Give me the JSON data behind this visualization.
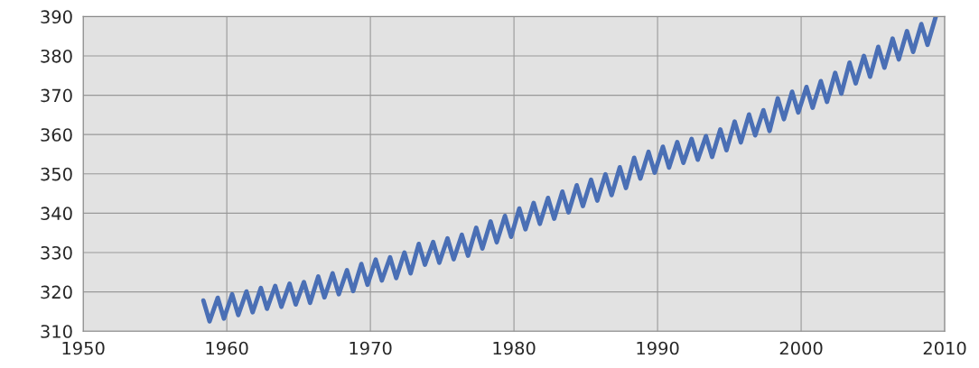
{
  "chart_data": {
    "type": "line",
    "x": [
      1958.37,
      1958.8,
      1959.37,
      1959.8,
      1960.37,
      1960.8,
      1961.37,
      1961.8,
      1962.37,
      1962.8,
      1963.37,
      1963.8,
      1964.37,
      1964.8,
      1965.37,
      1965.8,
      1966.37,
      1966.8,
      1967.37,
      1967.8,
      1968.37,
      1968.8,
      1969.37,
      1969.8,
      1970.37,
      1970.8,
      1971.37,
      1971.8,
      1972.37,
      1972.8,
      1973.37,
      1973.8,
      1974.37,
      1974.8,
      1975.37,
      1975.8,
      1976.37,
      1976.8,
      1977.37,
      1977.8,
      1978.37,
      1978.8,
      1979.37,
      1979.8,
      1980.37,
      1980.8,
      1981.37,
      1981.8,
      1982.37,
      1982.8,
      1983.37,
      1983.8,
      1984.37,
      1984.8,
      1985.37,
      1985.8,
      1986.37,
      1986.8,
      1987.37,
      1987.8,
      1988.37,
      1988.8,
      1989.37,
      1989.8,
      1990.37,
      1990.8,
      1991.37,
      1991.8,
      1992.37,
      1992.8,
      1993.37,
      1993.8,
      1994.37,
      1994.8,
      1995.37,
      1995.8,
      1996.37,
      1996.8,
      1997.37,
      1997.8,
      1998.37,
      1998.8,
      1999.37,
      1999.8,
      2000.37,
      2000.8,
      2001.37,
      2001.8,
      2002.37,
      2002.8,
      2003.37,
      2003.8,
      2004.37,
      2004.8,
      2005.37,
      2005.8,
      2006.37,
      2006.8,
      2007.37,
      2007.8,
      2008.37,
      2008.8,
      2009.37
    ],
    "series": [
      {
        "color": "#4a6fb5",
        "values": [
          317.8,
          312.5,
          318.5,
          313.2,
          319.4,
          314.1,
          320.1,
          314.8,
          321.0,
          315.7,
          321.5,
          316.2,
          322.1,
          316.8,
          322.5,
          317.2,
          323.9,
          318.6,
          324.7,
          319.4,
          325.5,
          320.2,
          327.1,
          321.8,
          328.2,
          322.9,
          328.8,
          323.5,
          330.0,
          324.7,
          332.2,
          326.9,
          332.7,
          327.4,
          333.6,
          328.3,
          334.5,
          329.2,
          336.3,
          331.0,
          337.9,
          332.6,
          339.3,
          334.0,
          341.2,
          335.9,
          342.6,
          337.3,
          343.9,
          338.6,
          345.5,
          340.2,
          347.1,
          341.8,
          348.5,
          343.2,
          349.9,
          344.6,
          351.7,
          346.4,
          354.1,
          348.8,
          355.6,
          350.3,
          356.9,
          351.6,
          358.1,
          352.8,
          358.9,
          353.6,
          359.6,
          354.3,
          361.3,
          356.0,
          363.3,
          358.0,
          365.1,
          359.8,
          366.2,
          360.9,
          369.2,
          363.9,
          370.9,
          365.6,
          372.1,
          366.8,
          373.6,
          368.3,
          375.7,
          370.4,
          378.3,
          373.0,
          380.0,
          374.7,
          382.3,
          377.0,
          384.4,
          379.1,
          386.3,
          381.0,
          388.1,
          382.8,
          389.9
        ]
      }
    ],
    "xlim": [
      1950,
      2010
    ],
    "xticks": [
      1950,
      1960,
      1970,
      1980,
      1990,
      2000,
      2010
    ],
    "ylim": [
      310,
      390
    ],
    "yticks": [
      310,
      320,
      330,
      340,
      350,
      360,
      370,
      380,
      390
    ],
    "grid": true,
    "marker": "none",
    "line_style": "solid"
  }
}
